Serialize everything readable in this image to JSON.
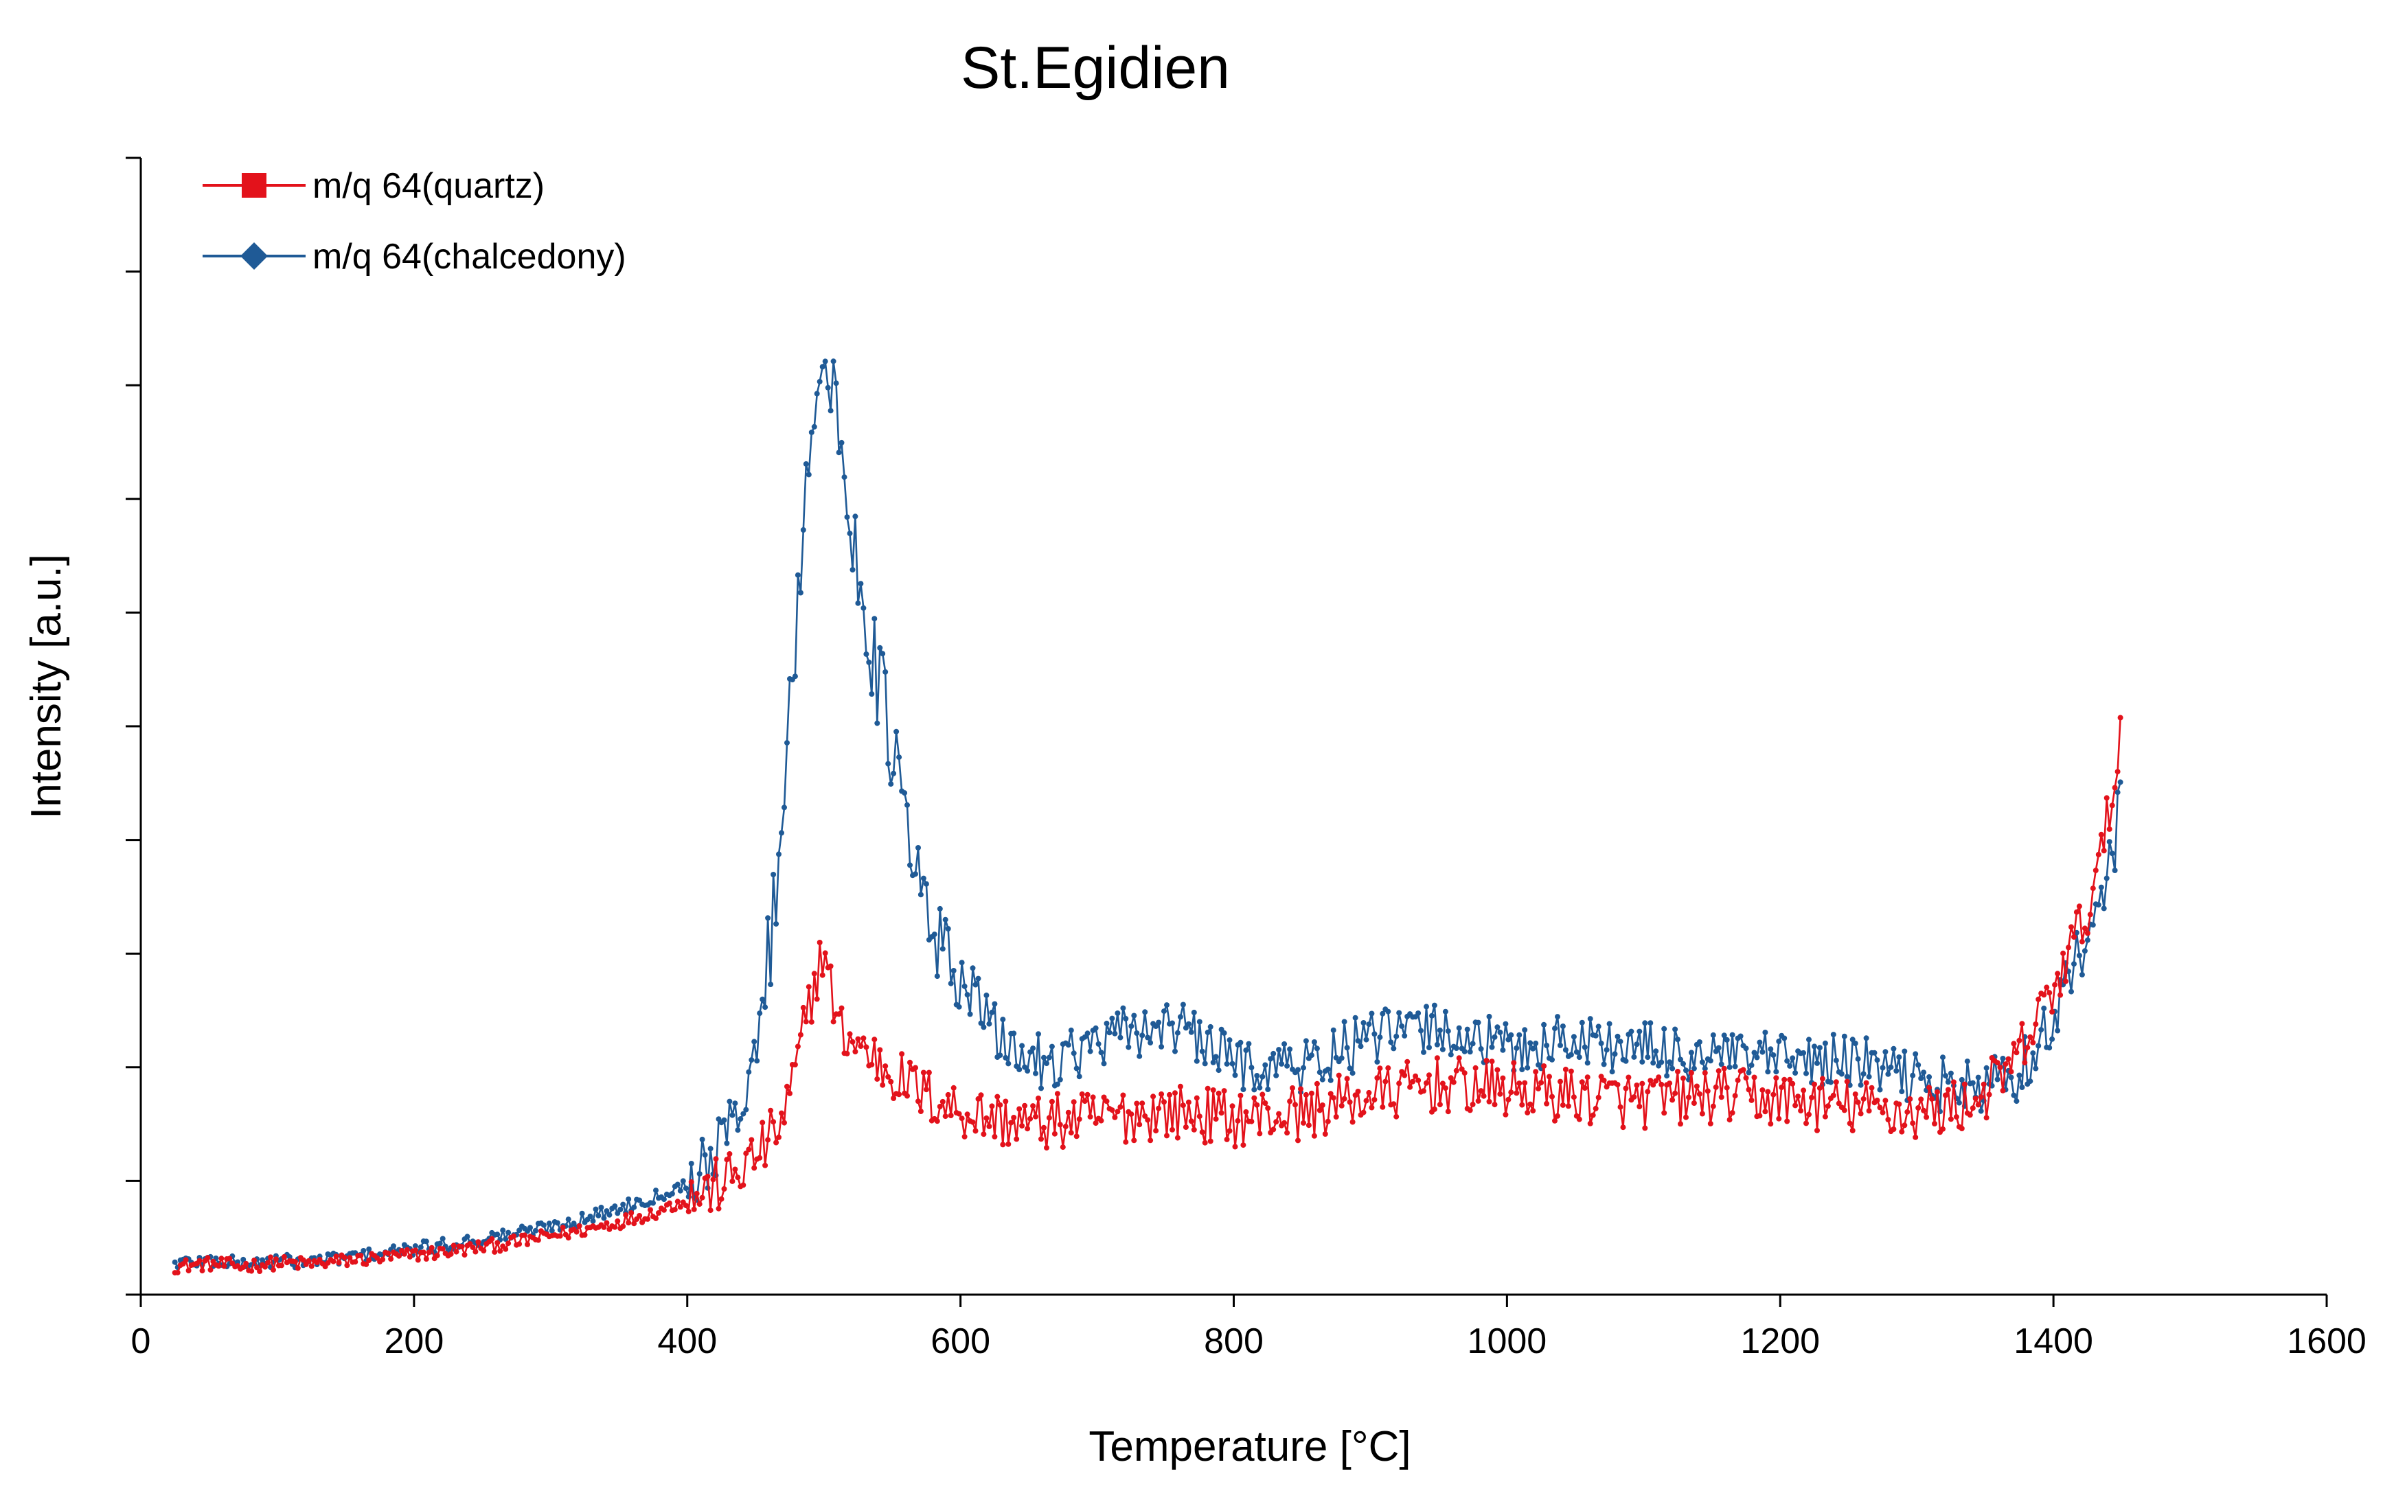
{
  "chart_data": {
    "type": "line",
    "title": "St.Egidien",
    "xlabel": "Temperature [°C]",
    "ylabel": "Intensity [a.u.]",
    "xlim": [
      0,
      1600
    ],
    "ylim": [
      0,
      10
    ],
    "x_ticks": [
      0,
      200,
      400,
      600,
      800,
      1000,
      1200,
      1400,
      1600
    ],
    "y_ticks": [
      0,
      1,
      2,
      3,
      4,
      5,
      6,
      7,
      8,
      9,
      10
    ],
    "y_tick_labels_shown": false,
    "grid": false,
    "legend_position": "top-left",
    "series": [
      {
        "name": "m/q 64(quartz)",
        "color": "#e3121b",
        "marker": "square",
        "x": [
          25,
          50,
          75,
          100,
          125,
          150,
          175,
          200,
          225,
          250,
          275,
          300,
          325,
          350,
          375,
          400,
          425,
          440,
          455,
          470,
          480,
          490,
          500,
          510,
          530,
          550,
          575,
          600,
          625,
          650,
          700,
          750,
          800,
          850,
          900,
          950,
          1000,
          1050,
          1100,
          1150,
          1200,
          1250,
          1300,
          1340,
          1370,
          1390,
          1410,
          1430,
          1445,
          1450
        ],
        "values": [
          0.25,
          0.27,
          0.25,
          0.28,
          0.27,
          0.3,
          0.32,
          0.35,
          0.38,
          0.42,
          0.46,
          0.52,
          0.57,
          0.64,
          0.72,
          0.84,
          0.97,
          1.1,
          1.28,
          1.52,
          2.0,
          2.6,
          3.05,
          2.35,
          2.15,
          1.95,
          1.75,
          1.62,
          1.55,
          1.5,
          1.55,
          1.62,
          1.55,
          1.6,
          1.75,
          1.85,
          1.8,
          1.75,
          1.7,
          1.75,
          1.72,
          1.65,
          1.6,
          1.68,
          2.0,
          2.45,
          2.95,
          3.55,
          4.5,
          5.15
        ]
      },
      {
        "name": "m/q 64(chalcedony)",
        "color": "#1f5a96",
        "marker": "diamond",
        "x": [
          25,
          50,
          75,
          100,
          125,
          150,
          175,
          200,
          225,
          250,
          275,
          300,
          325,
          350,
          375,
          400,
          420,
          435,
          450,
          460,
          470,
          480,
          490,
          500,
          510,
          520,
          535,
          550,
          565,
          580,
          600,
          630,
          660,
          700,
          750,
          800,
          850,
          900,
          950,
          1000,
          1050,
          1100,
          1150,
          1200,
          1250,
          1300,
          1340,
          1370,
          1390,
          1410,
          1430,
          1445,
          1450
        ],
        "values": [
          0.28,
          0.3,
          0.27,
          0.3,
          0.29,
          0.33,
          0.36,
          0.4,
          0.44,
          0.49,
          0.54,
          0.6,
          0.67,
          0.76,
          0.86,
          0.98,
          1.25,
          1.55,
          2.1,
          3.0,
          4.3,
          5.95,
          7.8,
          8.2,
          7.6,
          6.8,
          5.7,
          4.8,
          3.8,
          3.1,
          2.85,
          2.2,
          2.05,
          2.2,
          2.4,
          2.05,
          2.0,
          2.25,
          2.35,
          2.15,
          2.25,
          2.15,
          2.1,
          2.05,
          2.05,
          1.9,
          1.8,
          1.9,
          2.2,
          2.75,
          3.3,
          3.9,
          4.6
        ]
      }
    ]
  }
}
